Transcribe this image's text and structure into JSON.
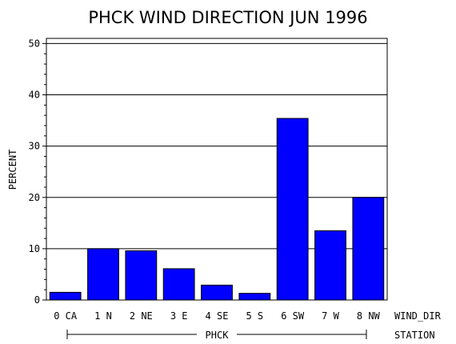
{
  "chart_data": {
    "type": "bar",
    "title": "PHCK WIND DIRECTION JUN 1996",
    "ylabel": "PERCENT",
    "xlabel": "WIND_DIR",
    "group_label": "STATION",
    "group_name": "PHCK",
    "categories": [
      "0 CA",
      "1 N",
      "2 NE",
      "3 E",
      "4 SE",
      "5 S",
      "6 SW",
      "7 W",
      "8 NW"
    ],
    "values": [
      1.5,
      10.0,
      9.6,
      6.1,
      2.9,
      1.3,
      35.4,
      13.5,
      20.0
    ],
    "ylim": [
      0,
      51
    ],
    "yticks": [
      "0",
      "10",
      "20",
      "30",
      "40",
      "50"
    ],
    "grid": true,
    "bar_color": "#0000FF"
  }
}
